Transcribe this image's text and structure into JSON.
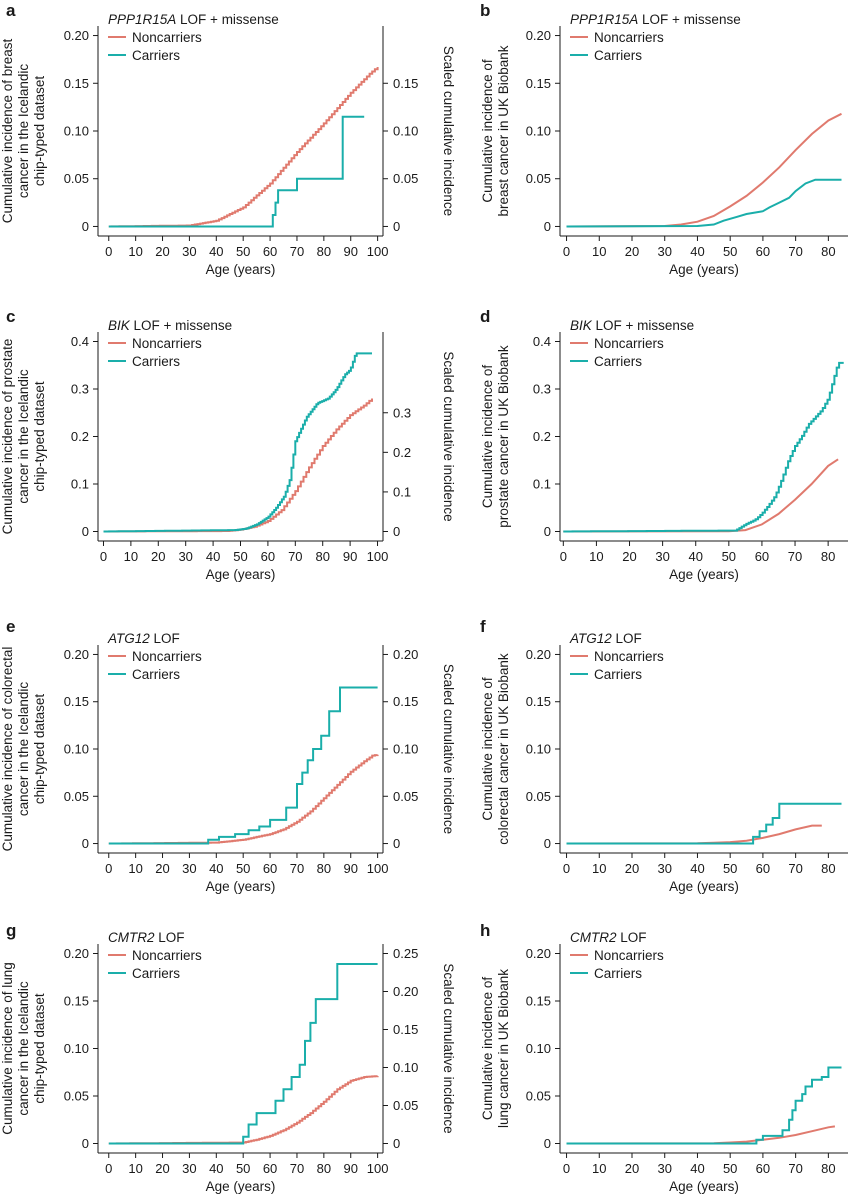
{
  "colors": {
    "noncarriers": "#e07a6e",
    "carriers": "#1aaeaa",
    "axis": "#1a1a1a"
  },
  "chart_data": [
    {
      "panel": "a",
      "type": "line",
      "title_gene": "PPP1R15A",
      "title_rest": " LOF + missense",
      "xlabel": "Age (years)",
      "ylabel": [
        "Cumulative incidence of breast",
        "cancer in the Icelandic",
        "chip-typed dataset"
      ],
      "ylabel2": "Scaled cumulative incidence",
      "xlim": [
        -4,
        102
      ],
      "ylim": [
        -0.01,
        0.21
      ],
      "xticks": [
        0,
        10,
        20,
        30,
        40,
        50,
        60,
        70,
        80,
        90,
        100
      ],
      "xtick_labels": [
        "0",
        "10",
        "20",
        "30",
        "40",
        "50",
        "60",
        "70",
        "80",
        "90",
        "100"
      ],
      "yticks": [
        0,
        0.05,
        0.1,
        0.15,
        0.2
      ],
      "ytick_labels": [
        "0",
        "0.05",
        "0.10",
        "0.15",
        "0.20"
      ],
      "y2_factor": 1.0,
      "y2ticks": [
        0,
        0.05,
        0.1,
        0.15
      ],
      "y2tick_labels": [
        "0",
        "0.05",
        "0.10",
        "0.15"
      ],
      "series": [
        {
          "name": "Noncarriers",
          "shape": "hatched",
          "x": [
            0,
            30,
            40,
            50,
            60,
            70,
            80,
            90,
            97,
            100
          ],
          "y": [
            0,
            0.001,
            0.006,
            0.02,
            0.045,
            0.078,
            0.108,
            0.14,
            0.16,
            0.167
          ]
        },
        {
          "name": "Carriers",
          "shape": "step",
          "x": [
            0,
            61,
            62,
            63,
            70,
            87,
            95
          ],
          "y": [
            0,
            0.012,
            0.025,
            0.038,
            0.05,
            0.115,
            0.115
          ]
        }
      ]
    },
    {
      "panel": "b",
      "type": "line",
      "title_gene": "PPP1R15A",
      "title_rest": " LOF + missense",
      "xlabel": "Age (years)",
      "ylabel": [
        "Cumulative incidence of",
        "breast cancer in UK Biobank"
      ],
      "xlim": [
        -2,
        86
      ],
      "ylim": [
        -0.01,
        0.21
      ],
      "xticks": [
        0,
        10,
        20,
        30,
        40,
        50,
        60,
        70,
        80
      ],
      "xtick_labels": [
        "0",
        "10",
        "20",
        "30",
        "40",
        "50",
        "60",
        "70",
        "80"
      ],
      "yticks": [
        0,
        0.05,
        0.1,
        0.15,
        0.2
      ],
      "ytick_labels": [
        "0",
        "0.05",
        "0.10",
        "0.15",
        "0.20"
      ],
      "series": [
        {
          "name": "Noncarriers",
          "shape": "smooth",
          "x": [
            0,
            30,
            35,
            40,
            45,
            50,
            55,
            60,
            65,
            70,
            75,
            80,
            84
          ],
          "y": [
            0,
            0.0005,
            0.002,
            0.005,
            0.011,
            0.021,
            0.032,
            0.046,
            0.062,
            0.08,
            0.097,
            0.111,
            0.118
          ]
        },
        {
          "name": "Carriers",
          "shape": "smooth",
          "x": [
            0,
            40,
            45,
            48,
            52,
            55,
            60,
            62,
            65,
            68,
            70,
            73,
            76,
            84
          ],
          "y": [
            0,
            0.0005,
            0.002,
            0.006,
            0.01,
            0.013,
            0.016,
            0.02,
            0.025,
            0.03,
            0.037,
            0.045,
            0.049,
            0.049
          ]
        }
      ]
    },
    {
      "panel": "c",
      "type": "line",
      "title_gene": "BIK",
      "title_rest": " LOF + missense",
      "xlabel": "Age (years)",
      "ylabel": [
        "Cumulative incidence of prostate",
        "cancer in the Icelandic",
        "chip-typed dataset"
      ],
      "ylabel2": "Scaled cumulative incidence",
      "xlim": [
        -2,
        102
      ],
      "ylim": [
        -0.02,
        0.42
      ],
      "xticks": [
        0,
        10,
        20,
        30,
        40,
        50,
        60,
        70,
        80,
        90,
        100
      ],
      "xtick_labels": [
        "0",
        "10",
        "20",
        "30",
        "40",
        "50",
        "60",
        "70",
        "80",
        "90",
        "100"
      ],
      "yticks": [
        0,
        0.1,
        0.2,
        0.3,
        0.4
      ],
      "ytick_labels": [
        "0",
        "0.1",
        "0.2",
        "0.3",
        "0.4"
      ],
      "y2_factor": 1.2,
      "y2ticks": [
        0,
        0.1,
        0.2,
        0.3
      ],
      "y2tick_labels": [
        "0",
        "0.1",
        "0.2",
        "0.3"
      ],
      "series": [
        {
          "name": "Noncarriers",
          "shape": "hatched",
          "x": [
            0,
            45,
            50,
            55,
            60,
            65,
            70,
            75,
            80,
            85,
            90,
            95,
            98
          ],
          "y": [
            0,
            0.001,
            0.004,
            0.01,
            0.022,
            0.045,
            0.085,
            0.135,
            0.18,
            0.215,
            0.245,
            0.265,
            0.28
          ]
        },
        {
          "name": "Carriers",
          "shape": "jagged",
          "x": [
            0,
            48,
            52,
            56,
            60,
            63,
            66,
            68,
            69,
            70,
            72,
            74,
            76,
            78,
            80,
            82,
            85,
            88,
            90,
            92,
            98
          ],
          "y": [
            0,
            0.003,
            0.006,
            0.015,
            0.03,
            0.05,
            0.075,
            0.11,
            0.15,
            0.19,
            0.215,
            0.24,
            0.255,
            0.27,
            0.275,
            0.28,
            0.3,
            0.33,
            0.34,
            0.375,
            0.375
          ]
        }
      ]
    },
    {
      "panel": "d",
      "type": "line",
      "title_gene": "BIK",
      "title_rest": " LOF + missense",
      "xlabel": "Age (years)",
      "ylabel": [
        "Cumulative incidence of",
        "prostate cancer in UK Biobank"
      ],
      "xlim": [
        -1,
        86
      ],
      "ylim": [
        -0.02,
        0.42
      ],
      "xticks": [
        0,
        10,
        20,
        30,
        40,
        50,
        60,
        70,
        80
      ],
      "xtick_labels": [
        "0",
        "10",
        "20",
        "30",
        "40",
        "50",
        "60",
        "70",
        "80"
      ],
      "yticks": [
        0,
        0.1,
        0.2,
        0.3,
        0.4
      ],
      "ytick_labels": [
        "0",
        "0.1",
        "0.2",
        "0.3",
        "0.4"
      ],
      "series": [
        {
          "name": "Noncarriers",
          "shape": "smooth",
          "x": [
            0,
            50,
            55,
            60,
            65,
            70,
            75,
            80,
            83
          ],
          "y": [
            0,
            0.0005,
            0.003,
            0.015,
            0.037,
            0.067,
            0.1,
            0.138,
            0.152
          ]
        },
        {
          "name": "Carriers",
          "shape": "jagged",
          "x": [
            0,
            52,
            55,
            58,
            60,
            62,
            64,
            66,
            68,
            70,
            72,
            74,
            76,
            78,
            80,
            82,
            83,
            85
          ],
          "y": [
            0,
            0.002,
            0.015,
            0.025,
            0.038,
            0.055,
            0.075,
            0.11,
            0.15,
            0.18,
            0.2,
            0.225,
            0.24,
            0.255,
            0.28,
            0.33,
            0.355,
            0.355
          ]
        }
      ]
    },
    {
      "panel": "e",
      "type": "line",
      "title_gene": "ATG12",
      "title_rest": " LOF",
      "xlabel": "Age (years)",
      "ylabel": [
        "Cumulative incidence of colorectal",
        "cancer in the Icelandic",
        "chip-typed dataset"
      ],
      "ylabel2": "Scaled cumulative incidence",
      "xlim": [
        -4,
        102
      ],
      "ylim": [
        -0.01,
        0.21
      ],
      "xticks": [
        0,
        10,
        20,
        30,
        40,
        50,
        60,
        70,
        80,
        90,
        100
      ],
      "xtick_labels": [
        "0",
        "10",
        "20",
        "30",
        "40",
        "50",
        "60",
        "70",
        "80",
        "90",
        "100"
      ],
      "yticks": [
        0,
        0.05,
        0.1,
        0.15,
        0.2
      ],
      "ytick_labels": [
        "0",
        "0.05",
        "0.10",
        "0.15",
        "0.20"
      ],
      "y2_factor": 1.0,
      "y2ticks": [
        0,
        0.05,
        0.1,
        0.15,
        0.2
      ],
      "y2tick_labels": [
        "0",
        "0.05",
        "0.10",
        "0.15",
        "0.20"
      ],
      "series": [
        {
          "name": "Noncarriers",
          "shape": "hatched",
          "x": [
            0,
            40,
            50,
            60,
            65,
            70,
            75,
            80,
            85,
            90,
            95,
            98,
            100
          ],
          "y": [
            0,
            0.001,
            0.004,
            0.01,
            0.015,
            0.023,
            0.034,
            0.048,
            0.062,
            0.076,
            0.087,
            0.093,
            0.094
          ]
        },
        {
          "name": "Carriers",
          "shape": "step",
          "x": [
            0,
            37,
            41,
            47,
            52,
            56,
            60,
            66,
            70,
            72,
            74,
            76,
            79,
            82,
            86,
            100
          ],
          "y": [
            0,
            0.004,
            0.007,
            0.01,
            0.014,
            0.018,
            0.025,
            0.038,
            0.063,
            0.075,
            0.088,
            0.1,
            0.114,
            0.14,
            0.165,
            0.165
          ]
        }
      ]
    },
    {
      "panel": "f",
      "type": "line",
      "title_gene": "ATG12",
      "title_rest": " LOF",
      "xlabel": "Age (years)",
      "ylabel": [
        "Cumulative incidence of",
        "colorectal cancer in UK Biobank"
      ],
      "xlim": [
        -2,
        86
      ],
      "ylim": [
        -0.01,
        0.21
      ],
      "xticks": [
        0,
        10,
        20,
        30,
        40,
        50,
        60,
        70,
        80
      ],
      "xtick_labels": [
        "0",
        "10",
        "20",
        "30",
        "40",
        "50",
        "60",
        "70",
        "80"
      ],
      "yticks": [
        0,
        0.05,
        0.1,
        0.15,
        0.2
      ],
      "ytick_labels": [
        "0",
        "0.05",
        "0.10",
        "0.15",
        "0.20"
      ],
      "series": [
        {
          "name": "Noncarriers",
          "shape": "smooth",
          "x": [
            0,
            40,
            45,
            50,
            55,
            60,
            65,
            70,
            75,
            78
          ],
          "y": [
            0,
            0.0003,
            0.0008,
            0.0015,
            0.003,
            0.006,
            0.01,
            0.015,
            0.019,
            0.019
          ]
        },
        {
          "name": "Carriers",
          "shape": "step",
          "x": [
            0,
            57,
            59,
            61,
            63,
            65,
            84
          ],
          "y": [
            0,
            0.007,
            0.013,
            0.02,
            0.027,
            0.042,
            0.042
          ]
        }
      ]
    },
    {
      "panel": "g",
      "type": "line",
      "title_gene": "CMTR2",
      "title_rest": " LOF",
      "xlabel": "Age (years)",
      "ylabel": [
        "Cumulative incidence of lung",
        "cancer in the Icelandic",
        "chip-typed dataset"
      ],
      "ylabel2": "Scaled cumulative incidence",
      "xlim": [
        -4,
        102
      ],
      "ylim": [
        -0.01,
        0.21
      ],
      "xticks": [
        0,
        10,
        20,
        30,
        40,
        50,
        60,
        70,
        80,
        90,
        100
      ],
      "xtick_labels": [
        "0",
        "10",
        "20",
        "30",
        "40",
        "50",
        "60",
        "70",
        "80",
        "90",
        "100"
      ],
      "yticks": [
        0,
        0.05,
        0.1,
        0.15,
        0.2
      ],
      "ytick_labels": [
        "0",
        "0.05",
        "0.10",
        "0.15",
        "0.20"
      ],
      "y2_factor": 1.25,
      "y2ticks": [
        0,
        0.05,
        0.1,
        0.15,
        0.2,
        0.25
      ],
      "y2tick_labels": [
        "0",
        "0.05",
        "0.10",
        "0.15",
        "0.20",
        "0.25"
      ],
      "series": [
        {
          "name": "Noncarriers",
          "shape": "hatched",
          "x": [
            0,
            50,
            55,
            60,
            65,
            70,
            75,
            80,
            85,
            90,
            95,
            100
          ],
          "y": [
            0,
            0.001,
            0.004,
            0.008,
            0.014,
            0.022,
            0.032,
            0.044,
            0.057,
            0.066,
            0.07,
            0.071
          ]
        },
        {
          "name": "Carriers",
          "shape": "step",
          "x": [
            0,
            50,
            52,
            55,
            62,
            65,
            68,
            71,
            73,
            75,
            77,
            85,
            100
          ],
          "y": [
            0,
            0.007,
            0.02,
            0.032,
            0.045,
            0.057,
            0.07,
            0.083,
            0.108,
            0.127,
            0.152,
            0.189,
            0.189
          ]
        }
      ]
    },
    {
      "panel": "h",
      "type": "line",
      "title_gene": "CMTR2",
      "title_rest": " LOF",
      "xlabel": "Age (years)",
      "ylabel": [
        "Cumulative incidence of",
        "lung cancer in UK Biobank"
      ],
      "xlim": [
        -2,
        86
      ],
      "ylim": [
        -0.01,
        0.21
      ],
      "xticks": [
        0,
        10,
        20,
        30,
        40,
        50,
        60,
        70,
        80
      ],
      "xtick_labels": [
        "0",
        "10",
        "20",
        "30",
        "40",
        "50",
        "60",
        "70",
        "80"
      ],
      "yticks": [
        0,
        0.05,
        0.1,
        0.15,
        0.2
      ],
      "ytick_labels": [
        "0",
        "0.05",
        "0.10",
        "0.15",
        "0.20"
      ],
      "series": [
        {
          "name": "Noncarriers",
          "shape": "smooth",
          "x": [
            0,
            45,
            50,
            55,
            60,
            65,
            70,
            75,
            80,
            82
          ],
          "y": [
            0,
            0.0003,
            0.001,
            0.002,
            0.004,
            0.006,
            0.009,
            0.013,
            0.017,
            0.018
          ]
        },
        {
          "name": "Carriers",
          "shape": "step",
          "x": [
            0,
            58,
            60,
            66,
            68,
            69,
            70,
            72,
            73,
            75,
            76,
            78,
            80,
            84
          ],
          "y": [
            0,
            0.004,
            0.008,
            0.014,
            0.025,
            0.035,
            0.045,
            0.052,
            0.06,
            0.067,
            0.067,
            0.07,
            0.08,
            0.08
          ]
        }
      ]
    }
  ]
}
